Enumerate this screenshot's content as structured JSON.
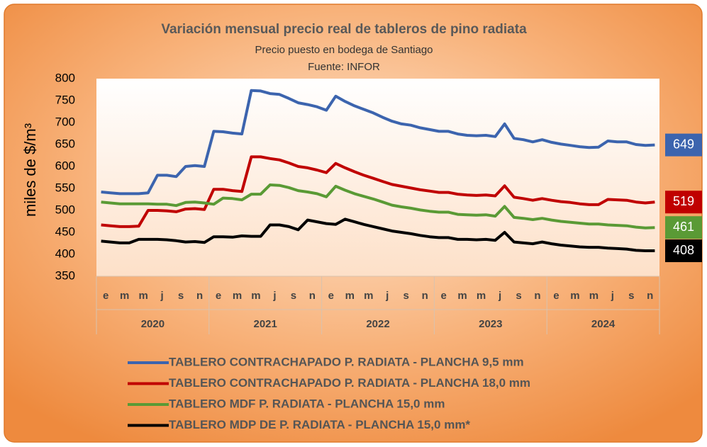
{
  "chart_data": {
    "type": "line",
    "title": "Variación mensual precio real de tableros de pino radiata",
    "subtitle": [
      "Precio  puesto en bodega de Santiago",
      "Fuente: INFOR"
    ],
    "y_label": "miles de $/m³",
    "categories": [
      "e",
      null,
      "m",
      null,
      "m",
      null,
      "j",
      null,
      "s",
      null,
      "n",
      null,
      "e",
      null,
      "m",
      null,
      "m",
      null,
      "j",
      null,
      "s",
      null,
      "n",
      null,
      "e",
      null,
      "m",
      null,
      "m",
      null,
      "j",
      null,
      "s",
      null,
      "n",
      null,
      "e",
      null,
      "m",
      null,
      "m",
      null,
      "j",
      null,
      "s",
      null,
      "n",
      null,
      "e",
      null,
      "m",
      null,
      "m",
      null,
      "j",
      null,
      "s",
      null,
      "n",
      null
    ],
    "years": [
      "2020",
      "2021",
      "2022",
      "2023",
      "2024"
    ],
    "ylim": [
      350,
      800
    ],
    "yticks": [
      350,
      400,
      450,
      500,
      550,
      600,
      650,
      700,
      750,
      800
    ],
    "series": [
      {
        "name": "TABLERO CONTRACHAPADO P. RADIATA - PLANCHA 9,5 mm",
        "color": "#3c64ae",
        "values": [
          542,
          540,
          538,
          538,
          538,
          540,
          580,
          580,
          577,
          600,
          602,
          600,
          680,
          679,
          676,
          674,
          773,
          772,
          766,
          764,
          755,
          745,
          741,
          736,
          728,
          760,
          748,
          738,
          730,
          722,
          712,
          703,
          697,
          694,
          688,
          684,
          680,
          680,
          674,
          671,
          670,
          671,
          668,
          697,
          664,
          661,
          656,
          661,
          655,
          651,
          648,
          645,
          643,
          644,
          658,
          656,
          656,
          650,
          648,
          649
        ]
      },
      {
        "name": "TABLERO CONTRACHAPADO P. RADIATA - PLANCHA 18,0 mm",
        "color": "#c00000",
        "values": [
          467,
          465,
          463,
          463,
          464,
          500,
          500,
          499,
          497,
          503,
          504,
          502,
          548,
          548,
          545,
          543,
          622,
          622,
          618,
          615,
          608,
          600,
          597,
          592,
          586,
          607,
          597,
          588,
          580,
          573,
          566,
          559,
          555,
          551,
          547,
          544,
          541,
          541,
          537,
          535,
          534,
          535,
          533,
          556,
          530,
          527,
          523,
          527,
          523,
          520,
          518,
          515,
          513,
          513,
          525,
          524,
          523,
          519,
          517,
          519
        ]
      },
      {
        "name": "TABLERO MDF P. RADIATA - PLANCHA 15,0 mm",
        "color": "#5a9a35",
        "values": [
          519,
          517,
          515,
          515,
          515,
          515,
          514,
          514,
          511,
          518,
          519,
          517,
          514,
          528,
          527,
          524,
          537,
          537,
          558,
          557,
          552,
          545,
          542,
          538,
          531,
          555,
          546,
          538,
          532,
          526,
          519,
          512,
          508,
          505,
          501,
          498,
          496,
          496,
          491,
          490,
          489,
          490,
          487,
          509,
          484,
          482,
          479,
          482,
          478,
          475,
          473,
          471,
          469,
          469,
          467,
          466,
          465,
          462,
          460,
          461
        ]
      },
      {
        "name": "TABLERO MDP DE P. RADIATA - PLANCHA 15,0 mm*",
        "color": "#000000",
        "values": [
          430,
          428,
          426,
          426,
          434,
          434,
          434,
          433,
          431,
          428,
          429,
          427,
          440,
          440,
          439,
          442,
          441,
          441,
          467,
          467,
          463,
          456,
          478,
          474,
          470,
          468,
          480,
          474,
          468,
          463,
          458,
          453,
          450,
          447,
          443,
          440,
          438,
          438,
          434,
          434,
          433,
          434,
          432,
          450,
          428,
          426,
          424,
          428,
          424,
          421,
          419,
          417,
          416,
          416,
          414,
          413,
          412,
          409,
          408,
          408
        ]
      }
    ]
  }
}
